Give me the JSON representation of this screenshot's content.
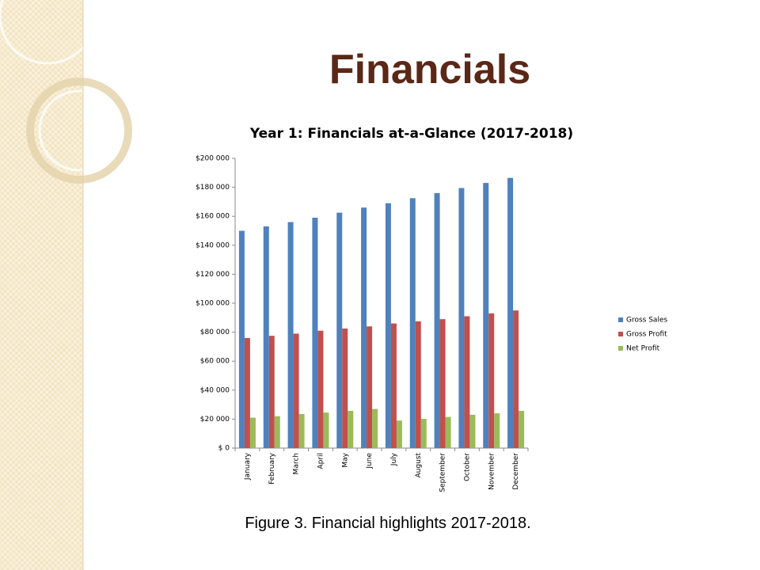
{
  "title": "Financials",
  "caption": "Figure 3. Financial highlights 2017-2018.",
  "chart_data": {
    "type": "bar",
    "title": "Year 1: Financials at-a-Glance (2017-2018)",
    "categories": [
      "January",
      "February",
      "March",
      "April",
      "May",
      "June",
      "July",
      "August",
      "September",
      "October",
      "November",
      "December"
    ],
    "series": [
      {
        "name": "Gross Sales",
        "color": "#4f81bd",
        "values": [
          150000,
          153000,
          156000,
          159000,
          162500,
          166000,
          169000,
          172500,
          176000,
          179500,
          183000,
          186500
        ]
      },
      {
        "name": "Gross Profit",
        "color": "#c0504d",
        "values": [
          76000,
          77500,
          79000,
          81000,
          82500,
          84000,
          86000,
          87500,
          89000,
          91000,
          93000,
          95000
        ]
      },
      {
        "name": "Net Profit",
        "color": "#9bbb59",
        "values": [
          21000,
          22000,
          23500,
          24500,
          25700,
          27000,
          19000,
          20200,
          21500,
          23000,
          24000,
          25700
        ]
      }
    ],
    "ylim": [
      0,
      200000
    ],
    "yticks": [
      {
        "value": 0,
        "label": "$ 0"
      },
      {
        "value": 20000,
        "label": "$20 000"
      },
      {
        "value": 40000,
        "label": "$40 000"
      },
      {
        "value": 60000,
        "label": "$60 000"
      },
      {
        "value": 80000,
        "label": "$80 000"
      },
      {
        "value": 100000,
        "label": "$100 000"
      },
      {
        "value": 120000,
        "label": "$120 000"
      },
      {
        "value": 140000,
        "label": "$140 000"
      },
      {
        "value": 160000,
        "label": "$160 000"
      },
      {
        "value": 180000,
        "label": "$180 000"
      },
      {
        "value": 200000,
        "label": "$200 000"
      }
    ],
    "grid": false,
    "legend": "right"
  }
}
